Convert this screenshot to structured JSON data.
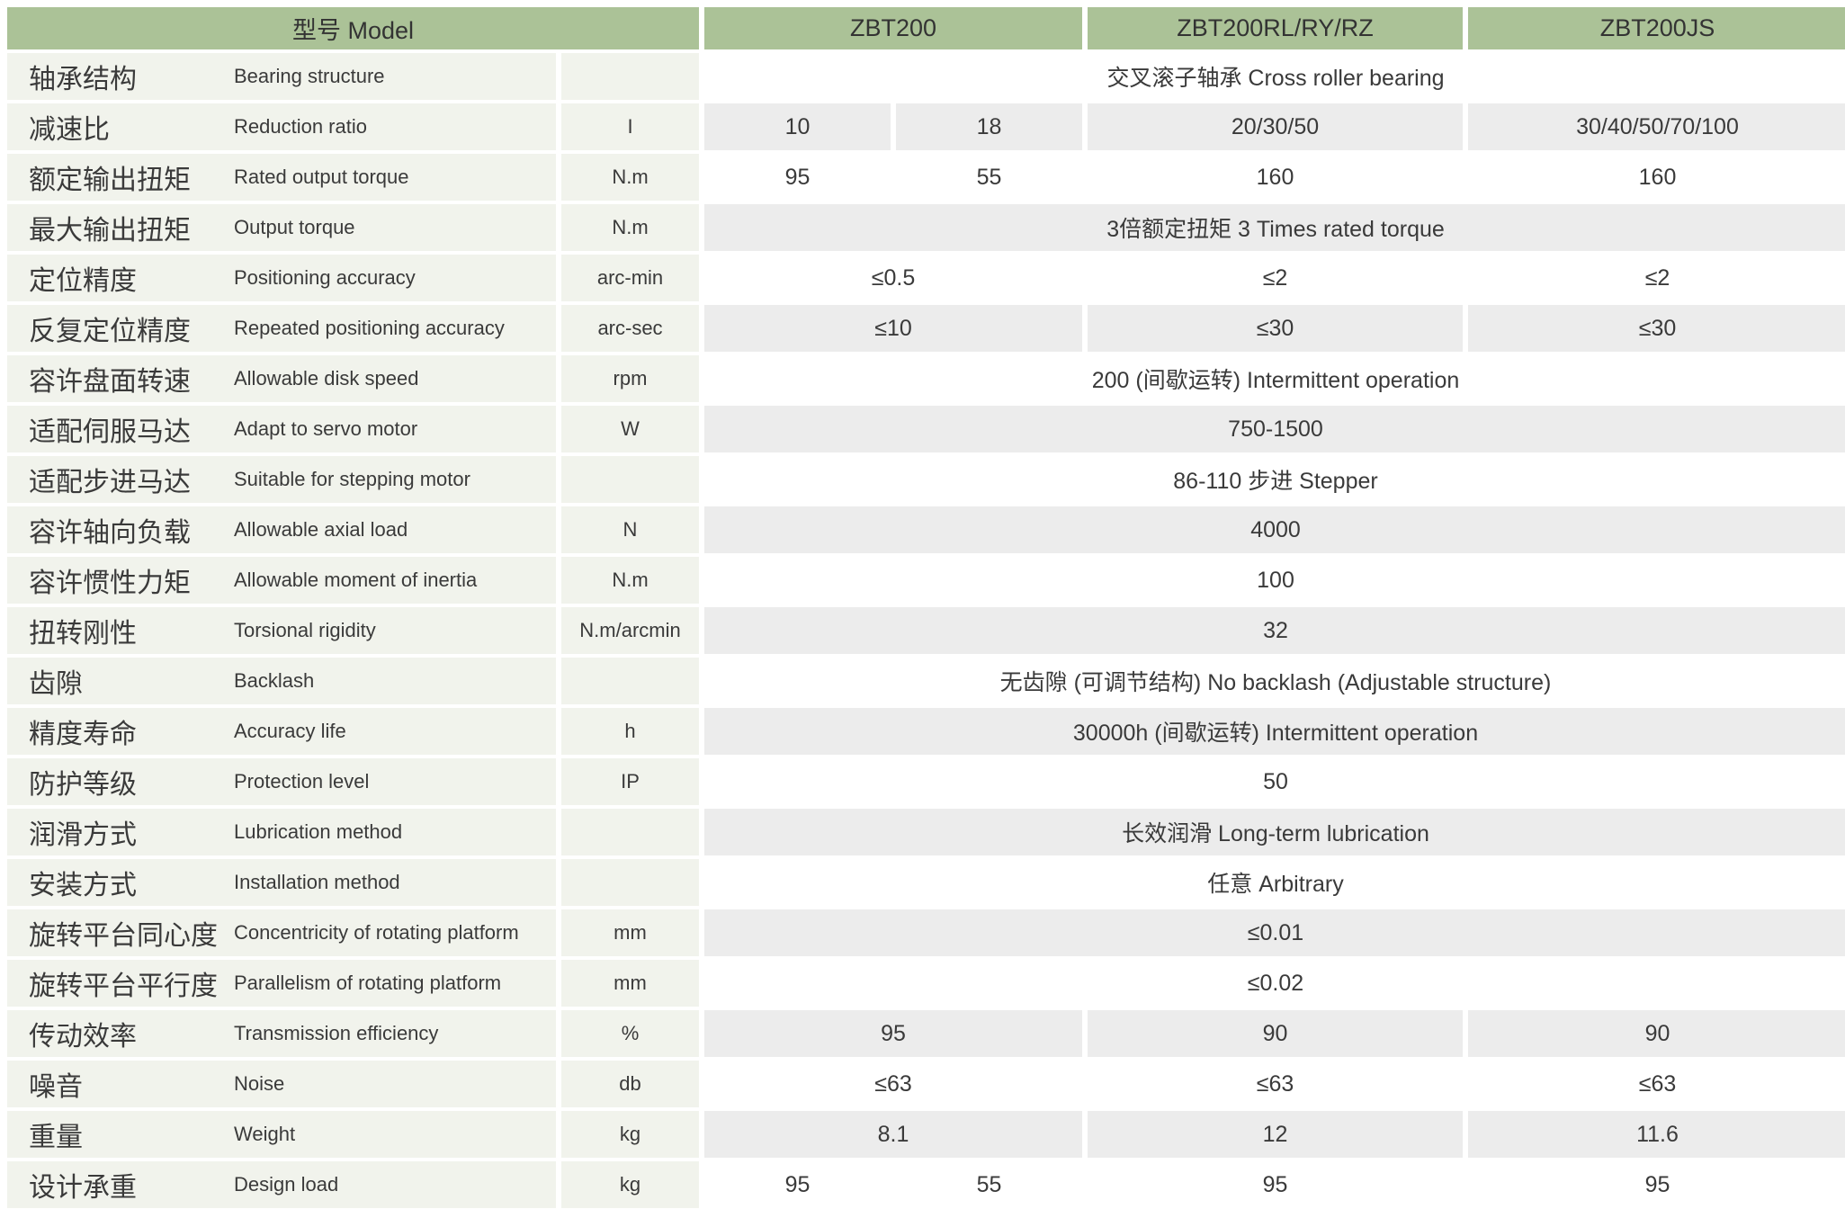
{
  "header": {
    "model_label": "型号 Model",
    "columns": [
      "ZBT200",
      "ZBT200RL/RY/RZ",
      "ZBT200JS"
    ]
  },
  "colors": {
    "header_bg": "#abc297",
    "label_bg": "#f1f3ec",
    "stripe_bg": "#ececec",
    "white_bg": "#ffffff",
    "text": "#3a3a3a"
  },
  "rows": [
    {
      "cn": "轴承结构",
      "en": "Bearing structure",
      "unit": "",
      "cells": [
        {
          "text": "交叉滚子轴承 Cross roller bearing",
          "span": 4
        }
      ]
    },
    {
      "cn": "减速比",
      "en": "Reduction ratio",
      "unit": "I",
      "cells": [
        {
          "text": "10",
          "span": 1
        },
        {
          "text": "18",
          "span": 1
        },
        {
          "text": "20/30/50",
          "span": 1
        },
        {
          "text": "30/40/50/70/100",
          "span": 1
        }
      ]
    },
    {
      "cn": "额定输出扭矩",
      "en": "Rated output torque",
      "unit": "N.m",
      "cells": [
        {
          "text": "95",
          "span": 1
        },
        {
          "text": "55",
          "span": 1
        },
        {
          "text": "160",
          "span": 1
        },
        {
          "text": "160",
          "span": 1
        }
      ]
    },
    {
      "cn": "最大输出扭矩",
      "en": "Output torque",
      "unit": "N.m",
      "cells": [
        {
          "text": "3倍额定扭矩 3 Times rated torque",
          "span": 4
        }
      ]
    },
    {
      "cn": "定位精度",
      "en": "Positioning accuracy",
      "unit": "arc-min",
      "cells": [
        {
          "text": "≤0.5",
          "span": 2
        },
        {
          "text": "≤2",
          "span": 1
        },
        {
          "text": "≤2",
          "span": 1
        }
      ]
    },
    {
      "cn": "反复定位精度",
      "en": "Repeated positioning accuracy",
      "unit": "arc-sec",
      "cells": [
        {
          "text": "≤10",
          "span": 2
        },
        {
          "text": "≤30",
          "span": 1
        },
        {
          "text": "≤30",
          "span": 1
        }
      ]
    },
    {
      "cn": "容许盘面转速",
      "en": "Allowable disk speed",
      "unit": "rpm",
      "cells": [
        {
          "text": "200 (间歇运转) Intermittent operation",
          "span": 4
        }
      ]
    },
    {
      "cn": "适配伺服马达",
      "en": "Adapt to servo motor",
      "unit": "W",
      "cells": [
        {
          "text": "750-1500",
          "span": 4
        }
      ]
    },
    {
      "cn": "适配步进马达",
      "en": "Suitable for stepping motor",
      "unit": "",
      "cells": [
        {
          "text": "86-110 步进 Stepper",
          "span": 4
        }
      ]
    },
    {
      "cn": "容许轴向负载",
      "en": "Allowable axial load",
      "unit": "N",
      "cells": [
        {
          "text": "4000",
          "span": 4
        }
      ]
    },
    {
      "cn": "容许惯性力矩",
      "en": "Allowable moment of inertia",
      "unit": "N.m",
      "cells": [
        {
          "text": "100",
          "span": 4
        }
      ]
    },
    {
      "cn": "扭转刚性",
      "en": "Torsional rigidity",
      "unit": "N.m/arcmin",
      "cells": [
        {
          "text": "32",
          "span": 4
        }
      ]
    },
    {
      "cn": "齿隙",
      "en": "Backlash",
      "unit": "",
      "cells": [
        {
          "text": "无齿隙 (可调节结构) No backlash (Adjustable structure)",
          "span": 4
        }
      ]
    },
    {
      "cn": "精度寿命",
      "en": "Accuracy life",
      "unit": "h",
      "cells": [
        {
          "text": "30000h (间歇运转) Intermittent operation",
          "span": 4
        }
      ]
    },
    {
      "cn": "防护等级",
      "en": "Protection level",
      "unit": "IP",
      "cells": [
        {
          "text": "50",
          "span": 4
        }
      ]
    },
    {
      "cn": "润滑方式",
      "en": "Lubrication method",
      "unit": "",
      "cells": [
        {
          "text": "长效润滑 Long-term lubrication",
          "span": 4
        }
      ]
    },
    {
      "cn": "安装方式",
      "en": "Installation method",
      "unit": "",
      "cells": [
        {
          "text": "任意 Arbitrary",
          "span": 4
        }
      ]
    },
    {
      "cn": "旋转平台同心度",
      "en": "Concentricity of rotating platform",
      "unit": "mm",
      "cells": [
        {
          "text": "≤0.01",
          "span": 4
        }
      ]
    },
    {
      "cn": "旋转平台平行度",
      "en": "Parallelism of rotating platform",
      "unit": "mm",
      "cells": [
        {
          "text": "≤0.02",
          "span": 4
        }
      ]
    },
    {
      "cn": "传动效率",
      "en": "Transmission efficiency",
      "unit": "%",
      "cells": [
        {
          "text": "95",
          "span": 2
        },
        {
          "text": "90",
          "span": 1
        },
        {
          "text": "90",
          "span": 1
        }
      ]
    },
    {
      "cn": "噪音",
      "en": "Noise",
      "unit": "db",
      "cells": [
        {
          "text": "≤63",
          "span": 2
        },
        {
          "text": "≤63",
          "span": 1
        },
        {
          "text": "≤63",
          "span": 1
        }
      ]
    },
    {
      "cn": "重量",
      "en": "Weight",
      "unit": "kg",
      "cells": [
        {
          "text": "8.1",
          "span": 2
        },
        {
          "text": "12",
          "span": 1
        },
        {
          "text": "11.6",
          "span": 1
        }
      ]
    },
    {
      "cn": "设计承重",
      "en": "Design load",
      "unit": "kg",
      "cells": [
        {
          "text": "95",
          "span": 1
        },
        {
          "text": "55",
          "span": 1
        },
        {
          "text": "95",
          "span": 1
        },
        {
          "text": "95",
          "span": 1
        }
      ]
    }
  ]
}
